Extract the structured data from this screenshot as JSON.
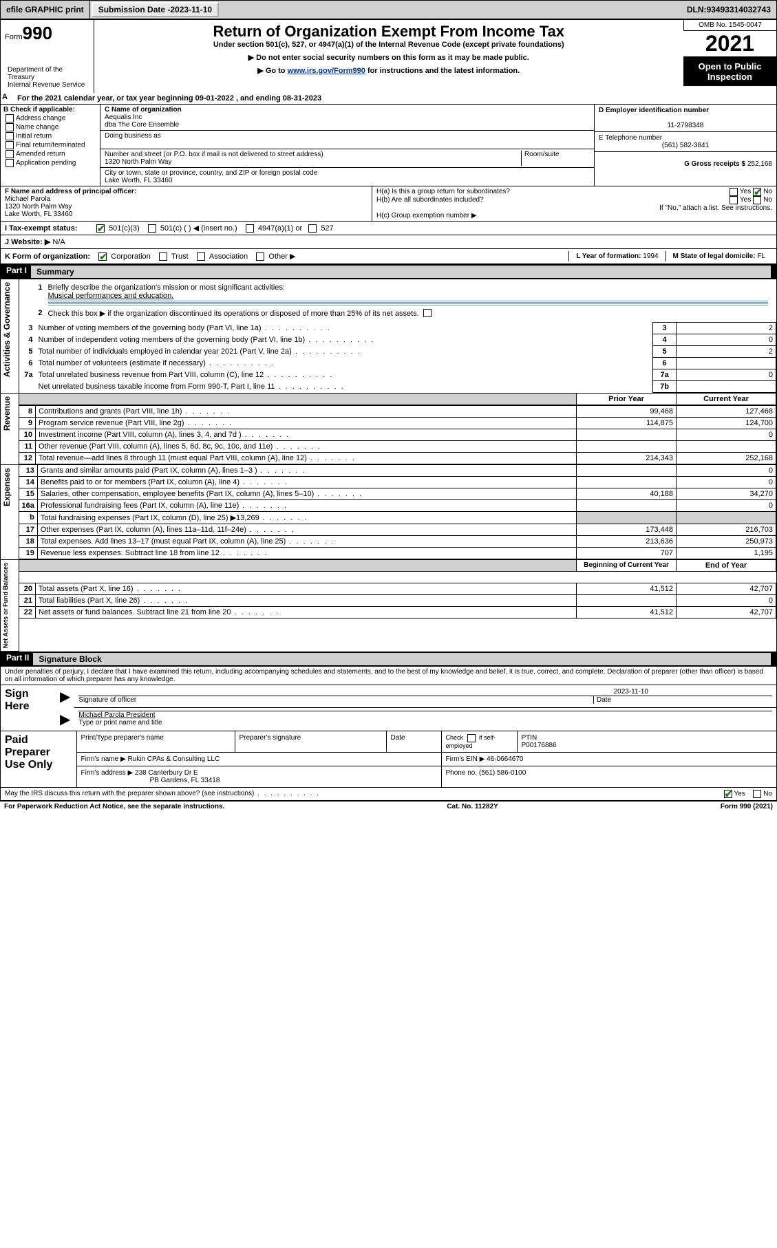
{
  "topbar": {
    "efile": "efile GRAPHIC print",
    "sub_label": "Submission Date - ",
    "sub_date": "2023-11-10",
    "dln_label": "DLN: ",
    "dln": "93493314032743"
  },
  "header": {
    "form_small": "Form",
    "form_no": "990",
    "title": "Return of Organization Exempt From Income Tax",
    "subtitle": "Under section 501(c), 527, or 4947(a)(1) of the Internal Revenue Code (except private foundations)",
    "instr1": "▶ Do not enter social security numbers on this form as it may be made public.",
    "instr2_pre": "▶ Go to ",
    "instr2_link": "www.irs.gov/Form990",
    "instr2_post": " for instructions and the latest information.",
    "dept": "Department of the Treasury\nInternal Revenue Service",
    "omb": "OMB No. 1545-0047",
    "year": "2021",
    "open": "Open to Public Inspection"
  },
  "periodA": {
    "pre": "For the 2021 calendar year, or tax year beginning ",
    "begin": "09-01-2022",
    "mid": " , and ending ",
    "end": "08-31-2023",
    "A": "A"
  },
  "boxB": {
    "label": "B Check if applicable:",
    "opts": [
      "Address change",
      "Name change",
      "Initial return",
      "Final return/terminated",
      "Amended return",
      "Application pending"
    ],
    "checked": [
      false,
      false,
      false,
      false,
      false,
      false
    ]
  },
  "boxC": {
    "name_label": "C Name of organization",
    "name": "Aequalis Inc",
    "dba": "dba The Core Ensemble",
    "dba_label": "Doing business as",
    "street_label": "Number and street (or P.O. box if mail is not delivered to street address)",
    "room_label": "Room/suite",
    "street": "1320 North Palm Way",
    "city_label": "City or town, state or province, country, and ZIP or foreign postal code",
    "city": "Lake Worth, FL  33460"
  },
  "boxD": {
    "label": "D Employer identification number",
    "val": "11-2798348"
  },
  "boxE": {
    "label": "E Telephone number",
    "val": "(561) 582-3841"
  },
  "boxG": {
    "label": "G Gross receipts $ ",
    "val": "252,168"
  },
  "boxF": {
    "label": "F  Name and address of principal officer:",
    "name": "Michael Parola",
    "street": "1320 North Palm Way",
    "city": "Lake Worth, FL  33460"
  },
  "boxH": {
    "a": "H(a)  Is this a group return for subordinates?",
    "a_yes": "Yes",
    "a_no": "No",
    "a_checked": "no",
    "b": "H(b)  Are all subordinates included?",
    "b_yes": "Yes",
    "b_no": "No",
    "b_note": "If \"No,\" attach a list. See instructions.",
    "c": "H(c)  Group exemption number ▶"
  },
  "rowI": {
    "label": "I    Tax-exempt status:",
    "opts": [
      "501(c)(3)",
      "501(c) (  ) ◀ (insert no.)",
      "4947(a)(1) or",
      "527"
    ],
    "checked": [
      true,
      false,
      false,
      false
    ]
  },
  "rowJ": {
    "label": "J   Website: ▶ ",
    "val": "N/A"
  },
  "rowK": {
    "label": "K Form of organization:",
    "opts": [
      "Corporation",
      "Trust",
      "Association",
      "Other ▶"
    ],
    "checked": [
      true,
      false,
      false,
      false
    ]
  },
  "rowL": {
    "label": "L Year of formation: ",
    "val": "1994"
  },
  "rowM": {
    "label": "M State of legal domicile: ",
    "val": "FL"
  },
  "part1": {
    "no": "Part I",
    "title": "Summary"
  },
  "summary": {
    "q1_label": "1",
    "q1": "Briefly describe the organization's mission or most significant activities:",
    "q1_val": "Musical performances and education.",
    "q2_label": "2",
    "q2": "Check this box ▶        if the organization discontinued its operations or disposed of more than 25% of its net assets.",
    "lines_gov": [
      {
        "n": "3",
        "t": "Number of voting members of the governing body (Part VI, line 1a)",
        "box": "3",
        "v": "2"
      },
      {
        "n": "4",
        "t": "Number of independent voting members of the governing body (Part VI, line 1b)",
        "box": "4",
        "v": "0"
      },
      {
        "n": "5",
        "t": "Total number of individuals employed in calendar year 2021 (Part V, line 2a)",
        "box": "5",
        "v": "2"
      },
      {
        "n": "6",
        "t": "Total number of volunteers (estimate if necessary)",
        "box": "6",
        "v": ""
      },
      {
        "n": "7a",
        "t": "Total unrelated business revenue from Part VIII, column (C), line 12",
        "box": "7a",
        "v": "0"
      },
      {
        "n": "",
        "t": "Net unrelated business taxable income from Form 990-T, Part I, line 11",
        "box": "7b",
        "v": ""
      }
    ],
    "hdr_prior": "Prior Year",
    "hdr_curr": "Current Year",
    "hdr_begin": "Beginning of Current Year",
    "hdr_end": "End of Year",
    "rev": [
      {
        "n": "8",
        "t": "Contributions and grants (Part VIII, line 1h)",
        "p": "99,468",
        "c": "127,468"
      },
      {
        "n": "9",
        "t": "Program service revenue (Part VIII, line 2g)",
        "p": "114,875",
        "c": "124,700"
      },
      {
        "n": "10",
        "t": "Investment income (Part VIII, column (A), lines 3, 4, and 7d )",
        "p": "",
        "c": "0"
      },
      {
        "n": "11",
        "t": "Other revenue (Part VIII, column (A), lines 5, 6d, 8c, 9c, 10c, and 11e)",
        "p": "",
        "c": ""
      },
      {
        "n": "12",
        "t": "Total revenue—add lines 8 through 11 (must equal Part VIII, column (A), line 12)",
        "p": "214,343",
        "c": "252,168"
      }
    ],
    "exp": [
      {
        "n": "13",
        "t": "Grants and similar amounts paid (Part IX, column (A), lines 1–3 )",
        "p": "",
        "c": "0"
      },
      {
        "n": "14",
        "t": "Benefits paid to or for members (Part IX, column (A), line 4)",
        "p": "",
        "c": "0"
      },
      {
        "n": "15",
        "t": "Salaries, other compensation, employee benefits (Part IX, column (A), lines 5–10)",
        "p": "40,188",
        "c": "34,270"
      },
      {
        "n": "16a",
        "t": "Professional fundraising fees (Part IX, column (A), line 11e)",
        "p": "",
        "c": "0"
      },
      {
        "n": "b",
        "t": "Total fundraising expenses (Part IX, column (D), line 25) ▶13,269",
        "p": "shaded",
        "c": "shaded"
      },
      {
        "n": "17",
        "t": "Other expenses (Part IX, column (A), lines 11a–11d, 11f–24e)",
        "p": "173,448",
        "c": "216,703"
      },
      {
        "n": "18",
        "t": "Total expenses. Add lines 13–17 (must equal Part IX, column (A), line 25)",
        "p": "213,636",
        "c": "250,973"
      },
      {
        "n": "19",
        "t": "Revenue less expenses. Subtract line 18 from line 12",
        "p": "707",
        "c": "1,195"
      }
    ],
    "net": [
      {
        "n": "20",
        "t": "Total assets (Part X, line 16)",
        "p": "41,512",
        "c": "42,707"
      },
      {
        "n": "21",
        "t": "Total liabilities (Part X, line 26)",
        "p": "",
        "c": "0"
      },
      {
        "n": "22",
        "t": "Net assets or fund balances. Subtract line 21 from line 20",
        "p": "41,512",
        "c": "42,707"
      }
    ]
  },
  "vlabels": {
    "gov": "Activities & Governance",
    "rev": "Revenue",
    "exp": "Expenses",
    "net": "Net Assets or Fund Balances"
  },
  "part2": {
    "no": "Part II",
    "title": "Signature Block"
  },
  "sig": {
    "perjury": "Under penalties of perjury, I declare that I have examined this return, including accompanying schedules and statements, and to the best of my knowledge and belief, it is true, correct, and complete. Declaration of preparer (other than officer) is based on all information of which preparer has any knowledge.",
    "sign_here": "Sign Here",
    "sig_officer": "Signature of officer",
    "date_label": "Date",
    "date": "2023-11-10",
    "officer": "Michael Parola  President",
    "type_label": "Type or print name and title",
    "paid": "Paid Preparer Use Only",
    "col1": "Print/Type preparer's name",
    "col2": "Preparer's signature",
    "col3": "Date",
    "check_self": "Check         if self-employed",
    "ptin_label": "PTIN",
    "ptin": "P00176886",
    "firm_name_label": "Firm's name      ▶ ",
    "firm_name": "Rukin CPAs & Consulting LLC",
    "firm_ein_label": "Firm's EIN ▶ ",
    "firm_ein": "46-0664670",
    "firm_addr_label": "Firm's address ▶ ",
    "firm_addr1": "238 Canterbury Dr E",
    "firm_addr2": "PB Gardens, FL  33418",
    "phone_label": "Phone no. ",
    "phone": "(561) 586-0100",
    "discuss": "May the IRS discuss this return with the preparer shown above? (see instructions)",
    "discuss_yes": "Yes",
    "discuss_no": "No"
  },
  "footer": {
    "left": "For Paperwork Reduction Act Notice, see the separate instructions.",
    "mid": "Cat. No. 11282Y",
    "right": "Form 990 (2021)"
  }
}
